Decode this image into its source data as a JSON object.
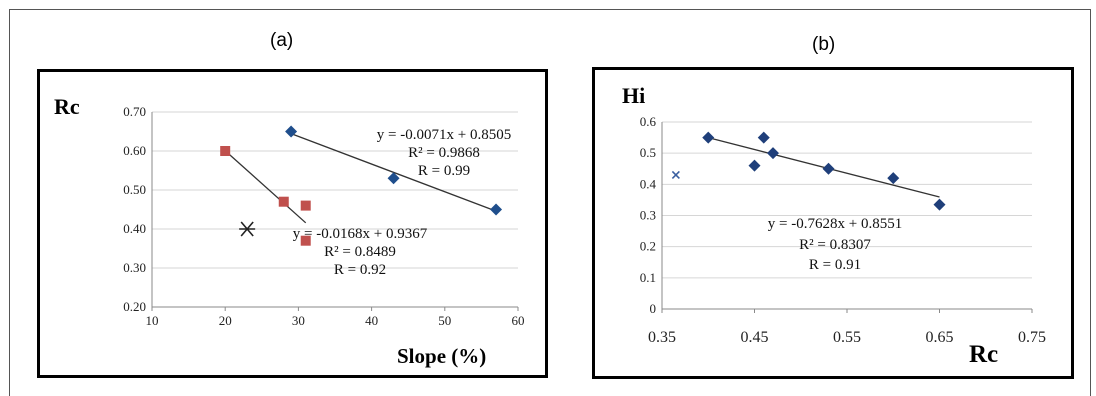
{
  "panels": {
    "a_label": "(a)",
    "b_label": "(b)"
  },
  "chart_data": [
    {
      "type": "scatter",
      "panel": "(a)",
      "title": "",
      "xlabel": "Slope (%)",
      "ylabel": "Rc",
      "xlim": [
        10,
        60
      ],
      "ylim": [
        0.2,
        0.7
      ],
      "x_ticks": [
        "10",
        "20",
        "30",
        "40",
        "50",
        "60"
      ],
      "y_ticks": [
        "0.20",
        "0.30",
        "0.40",
        "0.50",
        "0.60",
        "0.70"
      ],
      "grid": "horizontal",
      "series": [
        {
          "marker": "diamond",
          "color": "#1f4e8c",
          "points": [
            [
              29,
              0.65
            ],
            [
              43,
              0.53
            ],
            [
              57,
              0.45
            ]
          ],
          "trendline": [
            [
              29,
              0.6446
            ],
            [
              57,
              0.4458
            ]
          ],
          "equation": [
            "y = -0.0071x  + 0.8505",
            "R² = 0.9868",
            "R = 0.99"
          ]
        },
        {
          "marker": "square",
          "color": "#c0504d",
          "points": [
            [
              20,
              0.6
            ],
            [
              28,
              0.47
            ],
            [
              31,
              0.46
            ],
            [
              31,
              0.37
            ]
          ],
          "trendline": [
            [
              20,
              0.6007
            ],
            [
              31,
              0.4159
            ]
          ],
          "equation": [
            "y = -0.0168x  + 0.9367",
            "R² = 0.8489",
            "R = 0.92"
          ]
        },
        {
          "marker": "star",
          "color": "#222222",
          "points": [
            [
              23,
              0.4
            ]
          ]
        }
      ]
    },
    {
      "type": "scatter",
      "panel": "(b)",
      "title": "",
      "xlabel": "Rc",
      "ylabel": "Hi",
      "xlim": [
        0.35,
        0.75
      ],
      "ylim": [
        0,
        0.6
      ],
      "x_ticks": [
        "0.35",
        "0.45",
        "0.55",
        "0.65",
        "0.75"
      ],
      "y_ticks": [
        "0",
        "0.1",
        "0.2",
        "0.3",
        "0.4",
        "0.5",
        "0.6"
      ],
      "grid": "horizontal",
      "series": [
        {
          "marker": "diamond",
          "color": "#1f3f7a",
          "points": [
            [
              0.4,
              0.55
            ],
            [
              0.45,
              0.46
            ],
            [
              0.46,
              0.55
            ],
            [
              0.47,
              0.5
            ],
            [
              0.53,
              0.45
            ],
            [
              0.6,
              0.42
            ],
            [
              0.65,
              0.335
            ]
          ],
          "trendline": [
            [
              0.4,
              0.55
            ],
            [
              0.65,
              0.3593
            ]
          ],
          "equation": [
            "y = -0.7628x + 0.8551",
            "R² = 0.8307",
            "R = 0.91"
          ]
        },
        {
          "marker": "x",
          "color": "#3a5fa0",
          "points": [
            [
              0.365,
              0.43
            ]
          ]
        }
      ]
    }
  ]
}
